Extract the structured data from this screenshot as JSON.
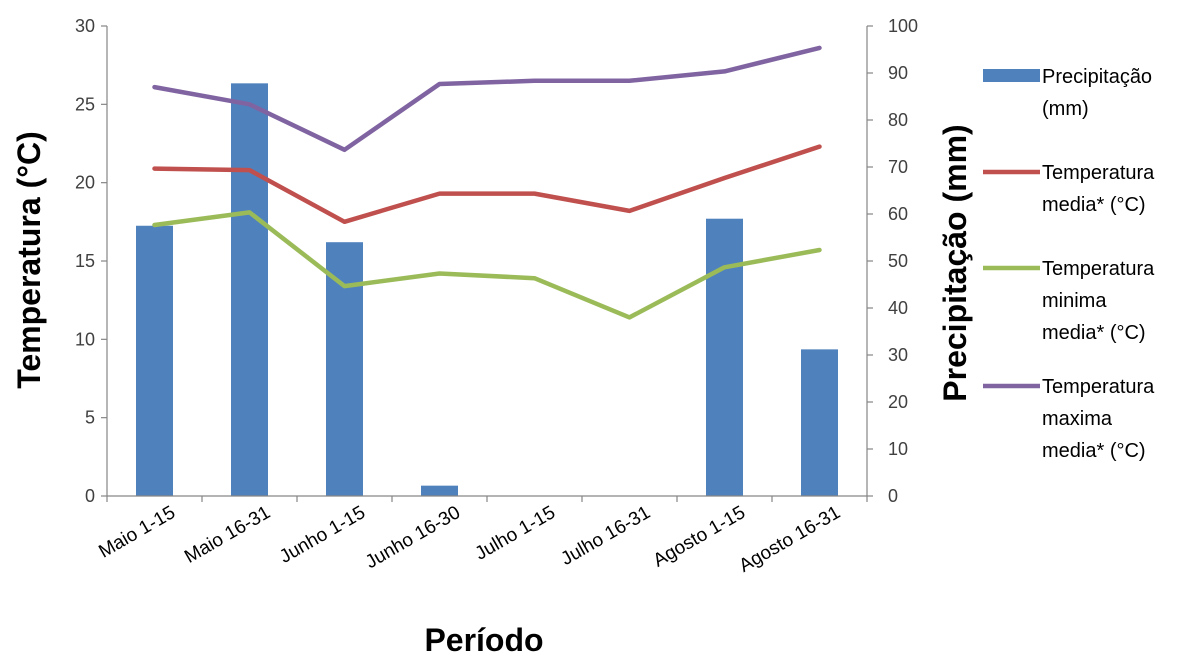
{
  "chart_data": {
    "type": "bar",
    "categories": [
      "Maio 1-15",
      "Maio 16-31",
      "Junho 1-15",
      "Junho 16-30",
      "Julho 1-15",
      "Julho 16-31",
      "Agosto 1-15",
      "Agosto 16-31"
    ],
    "xlabel": "Período",
    "ylabel_left": "Temperatura (°C)",
    "ylabel_right": "Precipitação (mm)",
    "ylim_left": [
      0,
      30
    ],
    "ylim_right": [
      0,
      100
    ],
    "yticks_left": [
      "0",
      "5",
      "10",
      "15",
      "20",
      "25",
      "30"
    ],
    "yticks_right": [
      "0",
      "10",
      "20",
      "30",
      "40",
      "50",
      "60",
      "70",
      "80",
      "90",
      "100"
    ],
    "grid": false,
    "legend_position": "right",
    "bar_series": {
      "name": "Precipitação (mm)",
      "axis": "right",
      "color": "#4F81BD",
      "values": [
        57.5,
        87.8,
        54.0,
        2.2,
        0,
        0,
        59.0,
        31.2
      ]
    },
    "line_series": [
      {
        "name": "Temperatura media* (°C)",
        "axis": "left",
        "color": "#C0504D",
        "values": [
          20.9,
          20.8,
          17.5,
          19.3,
          19.3,
          18.2,
          20.3,
          22.3
        ]
      },
      {
        "name": "Temperatura minima media* (°C)",
        "axis": "left",
        "color": "#9BBB59",
        "values": [
          17.3,
          18.1,
          13.4,
          14.2,
          13.9,
          11.4,
          14.6,
          15.7
        ]
      },
      {
        "name": "Temperatura maxima media* (°C)",
        "axis": "left",
        "color": "#8064A2",
        "values": [
          26.1,
          25.0,
          22.1,
          26.3,
          26.5,
          26.5,
          27.1,
          28.6
        ]
      }
    ],
    "legend": [
      {
        "key": "precip",
        "lines": [
          "Precipitação",
          "(mm)"
        ]
      },
      {
        "key": "media",
        "lines": [
          "Temperatura",
          "media* (°C)"
        ]
      },
      {
        "key": "minima",
        "lines": [
          "Temperatura",
          "minima",
          "media* (°C)"
        ]
      },
      {
        "key": "maxima",
        "lines": [
          "Temperatura",
          "maxima",
          "media* (°C)"
        ]
      }
    ]
  }
}
